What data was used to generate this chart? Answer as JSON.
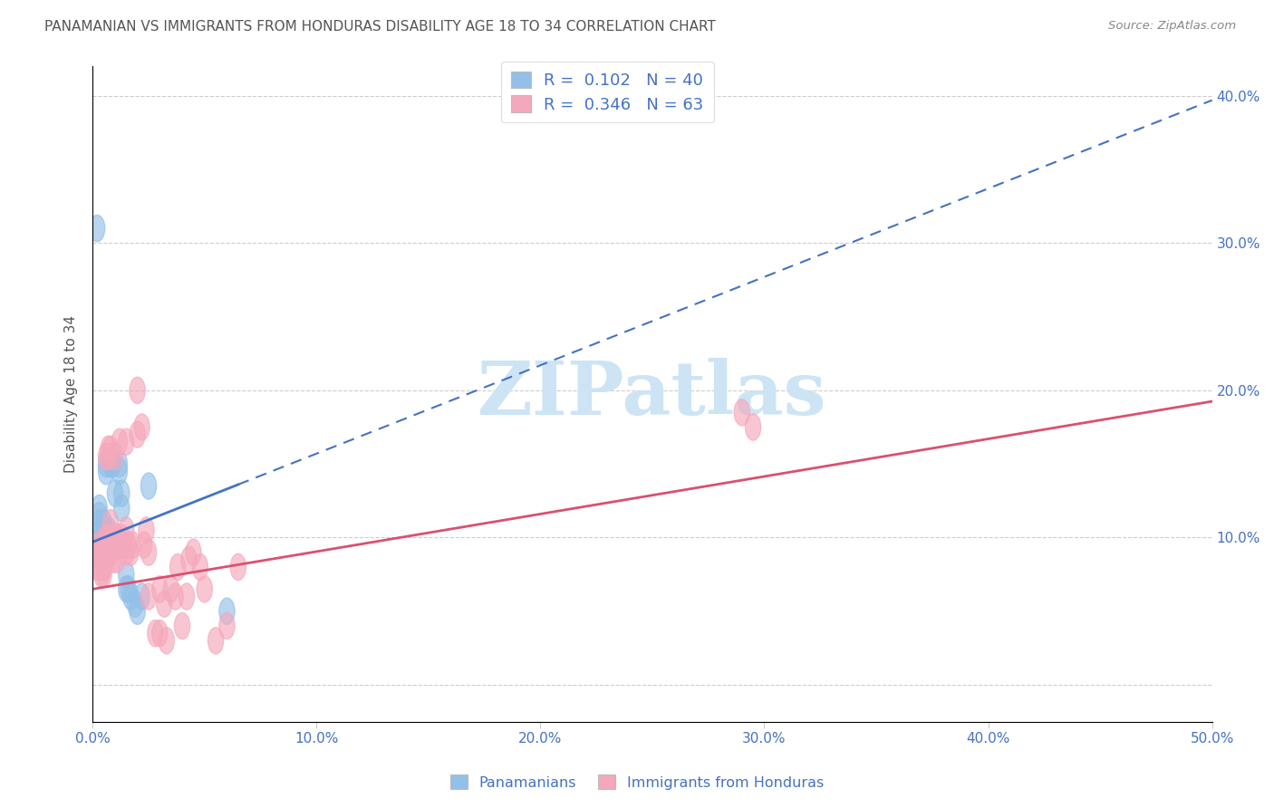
{
  "title": "PANAMANIAN VS IMMIGRANTS FROM HONDURAS DISABILITY AGE 18 TO 34 CORRELATION CHART",
  "source": "Source: ZipAtlas.com",
  "ylabel": "Disability Age 18 to 34",
  "xmin": 0.0,
  "xmax": 0.5,
  "ymin": -0.025,
  "ymax": 0.42,
  "xticks": [
    0.0,
    0.1,
    0.2,
    0.3,
    0.4,
    0.5
  ],
  "xticklabels": [
    "0.0%",
    "10.0%",
    "20.0%",
    "30.0%",
    "40.0%",
    "50.0%"
  ],
  "yticks": [
    0.0,
    0.1,
    0.2,
    0.3,
    0.4
  ],
  "yticklabels_right": [
    "",
    "10.0%",
    "20.0%",
    "30.0%",
    "40.0%"
  ],
  "legend1_R": "0.102",
  "legend1_N": "40",
  "legend2_R": "0.346",
  "legend2_N": "63",
  "blue_color": "#92c0e8",
  "pink_color": "#f5a8bb",
  "blue_line_color": "#4472c4",
  "pink_line_color": "#d9516e",
  "text_color": "#4472c4",
  "title_color": "#555555",
  "source_color": "#888888",
  "watermark_text": "ZIPatlas",
  "watermark_color": "#cde4f5",
  "pan_x": [
    0.002,
    0.003,
    0.003,
    0.003,
    0.004,
    0.004,
    0.004,
    0.004,
    0.005,
    0.005,
    0.005,
    0.005,
    0.005,
    0.005,
    0.006,
    0.006,
    0.006,
    0.006,
    0.007,
    0.007,
    0.007,
    0.008,
    0.008,
    0.009,
    0.009,
    0.01,
    0.01,
    0.012,
    0.012,
    0.013,
    0.013,
    0.015,
    0.015,
    0.016,
    0.017,
    0.019,
    0.02,
    0.022,
    0.025,
    0.06
  ],
  "pan_y": [
    0.31,
    0.12,
    0.115,
    0.11,
    0.105,
    0.1,
    0.095,
    0.085,
    0.11,
    0.105,
    0.095,
    0.09,
    0.085,
    0.08,
    0.15,
    0.145,
    0.1,
    0.09,
    0.105,
    0.1,
    0.09,
    0.15,
    0.1,
    0.15,
    0.1,
    0.13,
    0.1,
    0.15,
    0.145,
    0.13,
    0.12,
    0.075,
    0.065,
    0.065,
    0.06,
    0.055,
    0.05,
    0.06,
    0.135,
    0.05
  ],
  "hon_x": [
    0.002,
    0.002,
    0.003,
    0.003,
    0.004,
    0.004,
    0.004,
    0.005,
    0.005,
    0.005,
    0.005,
    0.006,
    0.006,
    0.006,
    0.006,
    0.007,
    0.007,
    0.007,
    0.008,
    0.008,
    0.008,
    0.009,
    0.009,
    0.01,
    0.01,
    0.011,
    0.011,
    0.012,
    0.012,
    0.013,
    0.014,
    0.015,
    0.015,
    0.015,
    0.016,
    0.017,
    0.018,
    0.02,
    0.02,
    0.022,
    0.023,
    0.024,
    0.025,
    0.025,
    0.028,
    0.03,
    0.03,
    0.032,
    0.033,
    0.035,
    0.037,
    0.038,
    0.04,
    0.042,
    0.043,
    0.045,
    0.048,
    0.05,
    0.055,
    0.06,
    0.065,
    0.29,
    0.295
  ],
  "hon_y": [
    0.085,
    0.08,
    0.095,
    0.085,
    0.09,
    0.08,
    0.075,
    0.09,
    0.085,
    0.08,
    0.075,
    0.155,
    0.1,
    0.09,
    0.085,
    0.16,
    0.155,
    0.1,
    0.16,
    0.11,
    0.09,
    0.1,
    0.085,
    0.155,
    0.1,
    0.1,
    0.085,
    0.165,
    0.095,
    0.1,
    0.095,
    0.165,
    0.105,
    0.09,
    0.095,
    0.09,
    0.095,
    0.2,
    0.17,
    0.175,
    0.095,
    0.105,
    0.09,
    0.06,
    0.035,
    0.065,
    0.035,
    0.055,
    0.03,
    0.065,
    0.06,
    0.08,
    0.04,
    0.06,
    0.085,
    0.09,
    0.08,
    0.065,
    0.03,
    0.04,
    0.08,
    0.185,
    0.175
  ],
  "blue_line_x0": 0.0,
  "blue_line_x_solid_end": 0.065,
  "blue_line_x_dashed_end": 0.5,
  "blue_line_y0": 0.097,
  "blue_line_slope": 0.6,
  "pink_line_x0": 0.0,
  "pink_line_x_end": 0.5,
  "pink_line_y0": 0.065,
  "pink_line_slope": 0.255
}
